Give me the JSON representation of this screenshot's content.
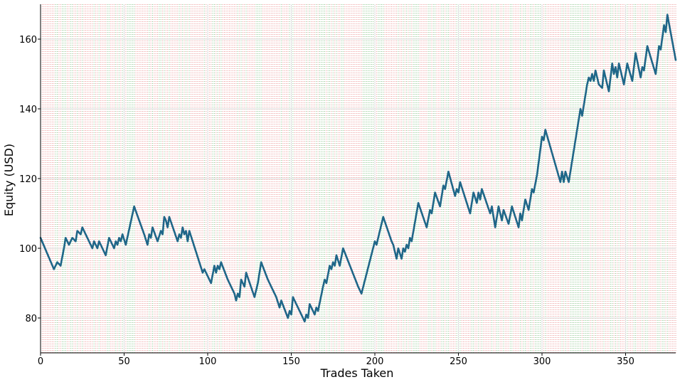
{
  "chart_data": {
    "type": "line",
    "xlabel": "Trades Taken",
    "ylabel": "Equity (USD)",
    "xlim": [
      0,
      380
    ],
    "ylim": [
      70,
      170
    ],
    "x_ticks": [
      0,
      50,
      100,
      150,
      200,
      250,
      300,
      350
    ],
    "y_ticks": [
      80,
      100,
      120,
      140,
      160
    ],
    "grid": true,
    "trade_markers": "vertical dotted line at every trade; green for a winning trade, red for a losing trade",
    "colors": {
      "equity_line": "#1f6688",
      "win_marker": "#5fae5f",
      "loss_marker": "#e57373",
      "grid": "#dddddd",
      "axis": "#000000"
    },
    "series": [
      {
        "points": [
          [
            0,
            103
          ],
          [
            8,
            94
          ],
          [
            10,
            96
          ],
          [
            12,
            95
          ],
          [
            14,
            100
          ],
          [
            15,
            103
          ],
          [
            17,
            101
          ],
          [
            19,
            103
          ],
          [
            21,
            102
          ],
          [
            22,
            105
          ],
          [
            24,
            104
          ],
          [
            25,
            106
          ],
          [
            28,
            103
          ],
          [
            31,
            100
          ],
          [
            32,
            102
          ],
          [
            34,
            100
          ],
          [
            35,
            102
          ],
          [
            37,
            100
          ],
          [
            39,
            98
          ],
          [
            41,
            103
          ],
          [
            44,
            100
          ],
          [
            45,
            102
          ],
          [
            46,
            101
          ],
          [
            47,
            103
          ],
          [
            48,
            102
          ],
          [
            49,
            104
          ],
          [
            51,
            101
          ],
          [
            56,
            112
          ],
          [
            62,
            104
          ],
          [
            64,
            101
          ],
          [
            65,
            104
          ],
          [
            66,
            103
          ],
          [
            67,
            106
          ],
          [
            70,
            102
          ],
          [
            72,
            105
          ],
          [
            73,
            104
          ],
          [
            74,
            109
          ],
          [
            75,
            108
          ],
          [
            76,
            106
          ],
          [
            77,
            109
          ],
          [
            82,
            102
          ],
          [
            83,
            104
          ],
          [
            84,
            103
          ],
          [
            85,
            106
          ],
          [
            86,
            104
          ],
          [
            87,
            105
          ],
          [
            88,
            102
          ],
          [
            89,
            105
          ],
          [
            97,
            93
          ],
          [
            98,
            94
          ],
          [
            102,
            90
          ],
          [
            104,
            95
          ],
          [
            105,
            93
          ],
          [
            106,
            95
          ],
          [
            107,
            94
          ],
          [
            108,
            96
          ],
          [
            112,
            91
          ],
          [
            115,
            88
          ],
          [
            116,
            87
          ],
          [
            117,
            85
          ],
          [
            118,
            87
          ],
          [
            119,
            86
          ],
          [
            120,
            91
          ],
          [
            122,
            89
          ],
          [
            123,
            93
          ],
          [
            128,
            86
          ],
          [
            130,
            90
          ],
          [
            132,
            96
          ],
          [
            136,
            91
          ],
          [
            141,
            86
          ],
          [
            143,
            83
          ],
          [
            144,
            85
          ],
          [
            148,
            80
          ],
          [
            149,
            82
          ],
          [
            150,
            81
          ],
          [
            151,
            86
          ],
          [
            155,
            82
          ],
          [
            157,
            80
          ],
          [
            158,
            79
          ],
          [
            159,
            81
          ],
          [
            160,
            80
          ],
          [
            161,
            84
          ],
          [
            164,
            81
          ],
          [
            165,
            83
          ],
          [
            166,
            82
          ],
          [
            169,
            89
          ],
          [
            170,
            91
          ],
          [
            171,
            90
          ],
          [
            173,
            95
          ],
          [
            174,
            94
          ],
          [
            175,
            96
          ],
          [
            176,
            95
          ],
          [
            177,
            98
          ],
          [
            179,
            95
          ],
          [
            181,
            100
          ],
          [
            190,
            89
          ],
          [
            192,
            87
          ],
          [
            200,
            102
          ],
          [
            201,
            101
          ],
          [
            205,
            109
          ],
          [
            210,
            102
          ],
          [
            211,
            101
          ],
          [
            213,
            97
          ],
          [
            214,
            100
          ],
          [
            216,
            97
          ],
          [
            217,
            100
          ],
          [
            218,
            99
          ],
          [
            219,
            101
          ],
          [
            220,
            100
          ],
          [
            221,
            103
          ],
          [
            222,
            102
          ],
          [
            226,
            113
          ],
          [
            231,
            106
          ],
          [
            233,
            111
          ],
          [
            234,
            110
          ],
          [
            236,
            116
          ],
          [
            239,
            112
          ],
          [
            241,
            118
          ],
          [
            242,
            117
          ],
          [
            244,
            122
          ],
          [
            248,
            115
          ],
          [
            249,
            117
          ],
          [
            250,
            116
          ],
          [
            251,
            119
          ],
          [
            257,
            110
          ],
          [
            259,
            116
          ],
          [
            261,
            113
          ],
          [
            262,
            116
          ],
          [
            263,
            114
          ],
          [
            264,
            117
          ],
          [
            269,
            110
          ],
          [
            270,
            112
          ],
          [
            272,
            106
          ],
          [
            274,
            112
          ],
          [
            276,
            108
          ],
          [
            277,
            111
          ],
          [
            280,
            107
          ],
          [
            282,
            112
          ],
          [
            286,
            106
          ],
          [
            287,
            110
          ],
          [
            288,
            108
          ],
          [
            290,
            114
          ],
          [
            292,
            111
          ],
          [
            294,
            117
          ],
          [
            295,
            116
          ],
          [
            297,
            121
          ],
          [
            300,
            132
          ],
          [
            301,
            131
          ],
          [
            302,
            134
          ],
          [
            308,
            124
          ],
          [
            311,
            119
          ],
          [
            312,
            122
          ],
          [
            313,
            119
          ],
          [
            314,
            122
          ],
          [
            316,
            119
          ],
          [
            323,
            140
          ],
          [
            324,
            138
          ],
          [
            327,
            147
          ],
          [
            328,
            149
          ],
          [
            329,
            148
          ],
          [
            330,
            150
          ],
          [
            331,
            148
          ],
          [
            332,
            151
          ],
          [
            334,
            147
          ],
          [
            336,
            146
          ],
          [
            337,
            151
          ],
          [
            340,
            145
          ],
          [
            342,
            153
          ],
          [
            343,
            150
          ],
          [
            344,
            152
          ],
          [
            345,
            149
          ],
          [
            346,
            153
          ],
          [
            349,
            147
          ],
          [
            351,
            153
          ],
          [
            354,
            148
          ],
          [
            356,
            156
          ],
          [
            359,
            149
          ],
          [
            360,
            152
          ],
          [
            361,
            151
          ],
          [
            363,
            158
          ],
          [
            368,
            150
          ],
          [
            370,
            158
          ],
          [
            371,
            157
          ],
          [
            373,
            164
          ],
          [
            374,
            162
          ],
          [
            375,
            167
          ],
          [
            380,
            154
          ]
        ]
      }
    ]
  }
}
